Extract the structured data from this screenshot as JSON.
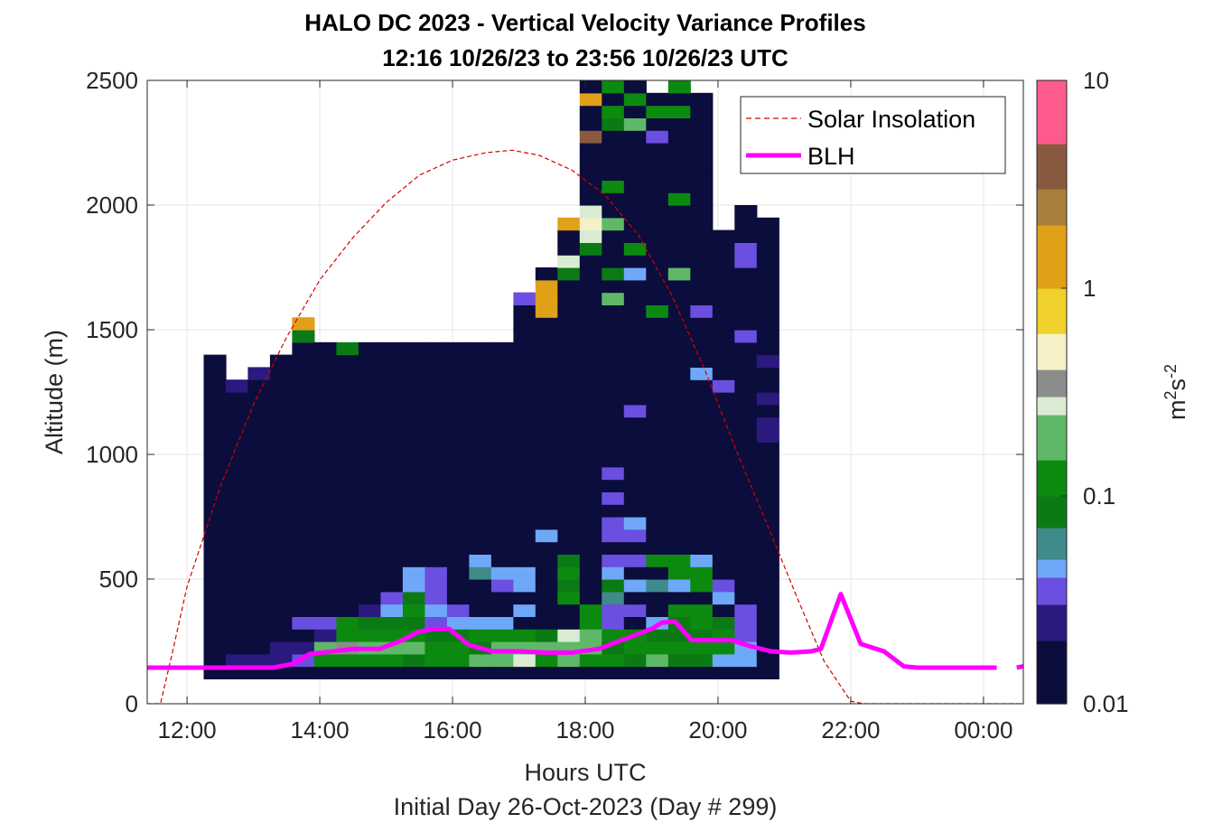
{
  "chart_data": {
    "type": "heatmap",
    "title": "HALO DC 2023 - Vertical Velocity Variance Profiles",
    "subtitle": "12:16 10/26/23 to 23:56 10/26/23  UTC",
    "xlabel": "Hours UTC",
    "xlabel2": "Initial Day 26-Oct-2023 (Day # 299)",
    "ylabel": "Altitude (m)",
    "x_unit": "hours since 00:00 UTC 26-Oct-2023",
    "xlim": [
      11.4,
      24.6
    ],
    "ylim": [
      0,
      2500
    ],
    "x_ticks": [
      12,
      14,
      16,
      18,
      20,
      22,
      24
    ],
    "x_tick_labels": [
      "12:00",
      "14:00",
      "16:00",
      "18:00",
      "20:00",
      "22:00",
      "00:00"
    ],
    "y_ticks": [
      0,
      500,
      1000,
      1500,
      2000,
      2500
    ],
    "y_tick_labels": [
      "0",
      "500",
      "1000",
      "1500",
      "2000",
      "2500"
    ],
    "grid": true,
    "legend": {
      "placement": "top-right",
      "entries": [
        "Solar Insolation",
        "BLH"
      ]
    },
    "colorbar": {
      "label": "m²s⁻²",
      "scale": "log",
      "range": [
        0.01,
        10
      ],
      "ticks": [
        0.01,
        0.1,
        1,
        10
      ],
      "tick_labels": [
        "0.01",
        "0.1",
        "1",
        "10"
      ]
    },
    "colormap": [
      {
        "v": 0.01,
        "c": "#0b0d3c"
      },
      {
        "v": 0.02,
        "c": "#2a1a7e"
      },
      {
        "v": 0.03,
        "c": "#6a4fe0"
      },
      {
        "v": 0.04,
        "c": "#6fa8f8"
      },
      {
        "v": 0.05,
        "c": "#3f8a8a"
      },
      {
        "v": 0.07,
        "c": "#0b7a14"
      },
      {
        "v": 0.1,
        "c": "#0c8a10"
      },
      {
        "v": 0.15,
        "c": "#5fb868"
      },
      {
        "v": 0.25,
        "c": "#d9ecd3"
      },
      {
        "v": 0.3,
        "c": "#8c8c8c"
      },
      {
        "v": 0.4,
        "c": "#f5f0c8"
      },
      {
        "v": 0.6,
        "c": "#f0d02a"
      },
      {
        "v": 1.0,
        "c": "#e0a018"
      },
      {
        "v": 2.0,
        "c": "#a87f3a"
      },
      {
        "v": 3.0,
        "c": "#8a5a40"
      },
      {
        "v": 5.0,
        "c": "#ff5a8c"
      },
      {
        "v": 10.0,
        "c": "#a0001e"
      }
    ],
    "cells": {
      "x_start": 12.25,
      "x_step": 0.3333,
      "y_start": 100,
      "y_step": 50,
      "n_columns": 26,
      "rows_above_base": "columns listed bottom to top; null = no data",
      "columns": [
        {
          "top": 1400
        },
        {
          "top": 1300,
          "values": {
            "150": 0.02,
            "1250": 0.02,
            "1300": 0.02
          }
        },
        {
          "top": 1350,
          "values": {
            "150": 0.02,
            "1300": 0.02
          }
        },
        {
          "top": 1400,
          "values": {
            "150": 0.02,
            "200": 0.02,
            "1400": 0.04
          }
        },
        {
          "top": 1550,
          "values": {
            "150": 0.03,
            "200": 0.02,
            "300": 0.03,
            "1450": 0.07,
            "1500": 1.0,
            "1550": 1.0
          }
        },
        {
          "top": 1450,
          "values": {
            "150": 0.1,
            "200": 0.15,
            "250": 0.02,
            "300": 0.03
          }
        },
        {
          "top": 1450,
          "values": {
            "150": 0.1,
            "200": 0.3,
            "250": 0.1,
            "300": 0.1,
            "1400": 0.07
          }
        },
        {
          "top": 1450,
          "values": {
            "150": 0.1,
            "200": 0.15,
            "250": 0.1,
            "300": 0.07,
            "350": 0.02,
            "1450": 0.04
          }
        },
        {
          "top": 1450,
          "values": {
            "150": 0.1,
            "200": 0.15,
            "250": 0.1,
            "300": 0.07,
            "350": 0.04,
            "400": 0.03
          }
        },
        {
          "top": 1450,
          "values": {
            "150": 0.07,
            "200": 0.15,
            "250": 0.1,
            "300": 0.07,
            "350": 0.1,
            "400": 0.07,
            "450": 0.04,
            "500": 0.04
          }
        },
        {
          "top": 1450,
          "values": {
            "150": 0.1,
            "200": 0.1,
            "250": 0.07,
            "300": 0.03,
            "350": 0.04,
            "400": 0.03,
            "450": 0.03,
            "500": 0.03
          }
        },
        {
          "top": 1450,
          "values": {
            "150": 0.1,
            "200": 0.1,
            "250": 0.07,
            "300": 0.04,
            "350": 0.03
          }
        },
        {
          "top": 1450,
          "values": {
            "150": 0.15,
            "200": 0.07,
            "250": 0.1,
            "300": 0.04,
            "500": 0.05,
            "550": 0.04
          }
        },
        {
          "top": 1450,
          "values": {
            "150": 0.15,
            "200": 0.15,
            "250": 0.1,
            "300": 0.04,
            "450": 0.03,
            "500": 0.04
          }
        },
        {
          "top": 1650,
          "values": {
            "150": 0.25,
            "200": 0.15,
            "250": 0.1,
            "350": 0.04,
            "450": 0.04,
            "500": 0.04,
            "1600": 0.03
          }
        },
        {
          "top": 1750,
          "values": {
            "150": 0.1,
            "200": 0.15,
            "250": 0.07,
            "650": 0.04,
            "1550": 1.0,
            "1600": 1.0,
            "1650": 1.0
          }
        },
        {
          "top": 1950,
          "values": {
            "150": 0.15,
            "200": 0.15,
            "250": 0.25,
            "400": 0.1,
            "450": 0.07,
            "500": 0.1,
            "550": 0.07,
            "1700": 0.07,
            "1750": 0.25,
            "1900": 1.0,
            "1950": 0.25
          }
        },
        {
          "top": 2500,
          "values": {
            "150": 0.1,
            "200": 0.15,
            "250": 0.15,
            "300": 0.1,
            "350": 0.1,
            "1800": 0.07,
            "1850": 0.25,
            "1900": 0.4,
            "1950": 0.25,
            "2400": 1.0,
            "2250": 3.0
          }
        },
        {
          "top": 2500,
          "values": {
            "150": 0.1,
            "200": 0.07,
            "250": 0.1,
            "300": 0.03,
            "350": 0.03,
            "400": 0.05,
            "450": 0.07,
            "500": 0.04,
            "550": 0.03,
            "650": 0.03,
            "700": 0.03,
            "800": 0.03,
            "900": 0.03,
            "1600": 0.15,
            "1700": 0.07,
            "1900": 0.15,
            "2050": 0.1,
            "2300": 0.07,
            "2350": 0.1,
            "2450": 0.1
          }
        },
        {
          "top": 2500,
          "values": {
            "150": 0.07,
            "200": 0.1,
            "250": 0.1,
            "350": 0.03,
            "450": 0.04,
            "550": 0.03,
            "650": 0.03,
            "700": 0.04,
            "1150": 0.03,
            "1700": 0.04,
            "1800": 0.1,
            "2300": 0.15,
            "2400": 0.1
          }
        },
        {
          "top": 2450,
          "values": {
            "150": 0.15,
            "200": 0.1,
            "250": 0.07,
            "300": 0.04,
            "450": 0.05,
            "550": 0.1,
            "1550": 0.1,
            "2250": 0.03,
            "2350": 0.1
          }
        },
        {
          "top": 2500,
          "values": {
            "150": 0.07,
            "200": 0.1,
            "250": 0.07,
            "300": 0.07,
            "350": 0.1,
            "450": 0.04,
            "500": 0.1,
            "550": 0.1,
            "1700": 0.15,
            "2000": 0.1,
            "2350": 0.1,
            "2450": 0.1
          }
        },
        {
          "top": 2450,
          "values": {
            "150": 0.07,
            "200": 0.1,
            "250": 0.07,
            "300": 0.1,
            "350": 0.1,
            "450": 0.1,
            "500": 0.1,
            "550": 0.04,
            "1300": 0.04,
            "1550": 0.03
          }
        },
        {
          "top": 1900,
          "values": {
            "150": 0.04,
            "200": 0.1,
            "250": 0.1,
            "300": 0.07,
            "400": 0.04,
            "450": 0.03,
            "1250": 0.03
          }
        },
        {
          "top": 2000,
          "values": {
            "150": 0.04,
            "200": 0.04,
            "250": 0.03,
            "300": 0.03,
            "350": 0.03,
            "1450": 0.03,
            "1750": 0.03,
            "1800": 0.03
          }
        },
        {
          "top": 1950,
          "values": {
            "1050": 0.02,
            "1100": 0.02,
            "1200": 0.02,
            "1350": 0.02
          }
        }
      ]
    },
    "series": [
      {
        "name": "Solar Insolation",
        "style": "dashed",
        "color": "#d40000",
        "x": [
          11.4,
          11.5,
          11.6,
          11.8,
          12.0,
          12.5,
          13.0,
          13.5,
          14.0,
          14.5,
          15.0,
          15.5,
          16.0,
          16.5,
          16.9,
          17.3,
          17.8,
          18.3,
          18.8,
          19.3,
          19.8,
          20.3,
          20.8,
          21.2,
          21.6,
          22.0,
          22.2,
          22.4,
          23.0,
          24.0,
          24.6
        ],
        "y": [
          0,
          0,
          0,
          230,
          470,
          870,
          1200,
          1470,
          1700,
          1870,
          2010,
          2120,
          2180,
          2210,
          2220,
          2200,
          2140,
          2040,
          1880,
          1640,
          1340,
          1000,
          680,
          420,
          170,
          10,
          0,
          0,
          0,
          0,
          0
        ]
      },
      {
        "name": "BLH",
        "color": "#ff00ff",
        "x": [
          11.4,
          12.0,
          13.0,
          13.3,
          13.6,
          13.85,
          14.2,
          14.5,
          14.9,
          15.2,
          15.5,
          15.75,
          15.95,
          16.25,
          16.6,
          17.0,
          17.4,
          17.8,
          18.2,
          18.6,
          19.0,
          19.15,
          19.35,
          19.6,
          19.9,
          20.2,
          20.5,
          20.8,
          21.1,
          21.4,
          21.55,
          21.85,
          22.15,
          22.5,
          22.8,
          23.0,
          23.5,
          24.0,
          24.2
        ],
        "y": [
          145,
          145,
          145,
          145,
          160,
          200,
          210,
          220,
          220,
          250,
          290,
          300,
          300,
          235,
          210,
          210,
          205,
          205,
          220,
          260,
          300,
          325,
          330,
          255,
          255,
          255,
          230,
          210,
          205,
          210,
          220,
          440,
          240,
          210,
          150,
          145,
          145,
          145,
          145
        ]
      },
      {
        "name": "BLH",
        "segment": "trailing",
        "x": [
          24.5,
          24.6
        ],
        "y": [
          145,
          150
        ]
      }
    ]
  }
}
